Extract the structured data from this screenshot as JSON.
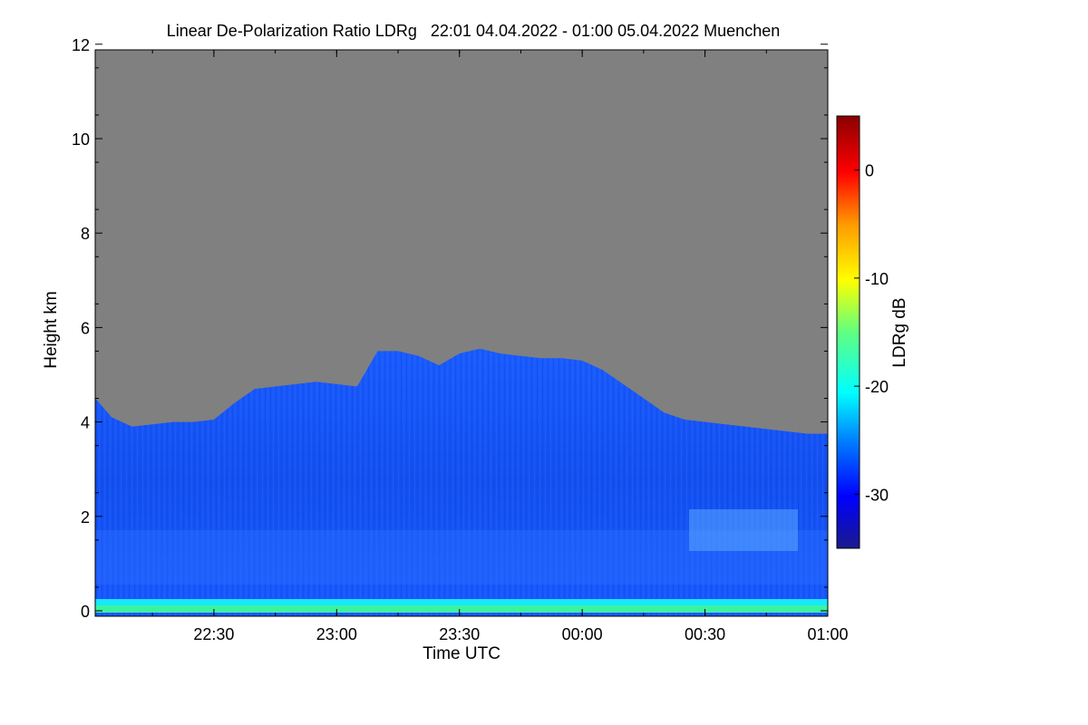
{
  "chart_data": {
    "type": "heatmap",
    "title": "Linear De-Polarization Ratio LDRg   22:01 04.04.2022 - 01:00 05.04.2022 Muenchen",
    "xlabel": "Time UTC",
    "ylabel": "Height km",
    "colorbar_label": "LDRg dB",
    "x_ticks": [
      "22:30",
      "23:00",
      "23:30",
      "00:00",
      "00:30",
      "01:00"
    ],
    "y_ticks": [
      "0",
      "2",
      "4",
      "6",
      "8",
      "10",
      "12"
    ],
    "colorbar_ticks": [
      "0",
      "-10",
      "-20",
      "-30"
    ],
    "ylim": [
      0,
      12
    ],
    "colorbar_range": [
      -35,
      5
    ],
    "no_signal_color": "#808080",
    "cloud_top_profile": {
      "time_utc": [
        "22:01",
        "22:05",
        "22:10",
        "22:15",
        "22:20",
        "22:25",
        "22:30",
        "22:35",
        "22:40",
        "22:45",
        "22:50",
        "22:55",
        "23:00",
        "23:05",
        "23:10",
        "23:15",
        "23:20",
        "23:25",
        "23:30",
        "23:35",
        "23:40",
        "23:45",
        "23:50",
        "23:55",
        "00:00",
        "00:05",
        "00:10",
        "00:15",
        "00:20",
        "00:25",
        "00:30",
        "00:35",
        "00:40",
        "00:45",
        "00:50",
        "00:55",
        "01:00"
      ],
      "height_km": [
        4.5,
        4.1,
        3.9,
        3.95,
        4.0,
        4.0,
        4.05,
        4.4,
        4.7,
        4.75,
        4.8,
        4.85,
        4.8,
        4.75,
        5.5,
        5.5,
        5.4,
        5.2,
        5.45,
        5.55,
        5.45,
        5.4,
        5.35,
        5.35,
        5.3,
        5.1,
        4.8,
        4.5,
        4.2,
        4.05,
        4.0,
        3.95,
        3.9,
        3.85,
        3.8,
        3.75,
        3.75
      ]
    },
    "typical_ldr_db": -29,
    "near_surface_ldr_db": -15
  }
}
